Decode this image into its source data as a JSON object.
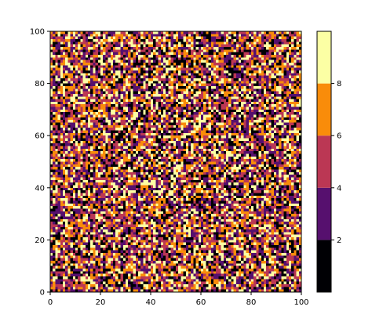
{
  "chart_data": {
    "type": "heatmap",
    "title": "",
    "xlabel": "",
    "ylabel": "",
    "xlim": [
      0,
      100
    ],
    "ylim": [
      0,
      100
    ],
    "grid_size": [
      100,
      100
    ],
    "value_range": [
      0,
      10
    ],
    "values_description": "random integers 0-9 (noise field)",
    "x_ticks": [
      "0",
      "20",
      "40",
      "60",
      "80",
      "100"
    ],
    "y_ticks": [
      "0",
      "20",
      "40",
      "60",
      "80",
      "100"
    ],
    "colorbar": {
      "bins": [
        0,
        2,
        4,
        6,
        8,
        10
      ],
      "tick_labels": [
        "2",
        "4",
        "6",
        "8"
      ],
      "colors": [
        "#000004",
        "#56106e",
        "#bb3754",
        "#f98c0a",
        "#fcffa4"
      ]
    },
    "colormap": "inferno"
  }
}
